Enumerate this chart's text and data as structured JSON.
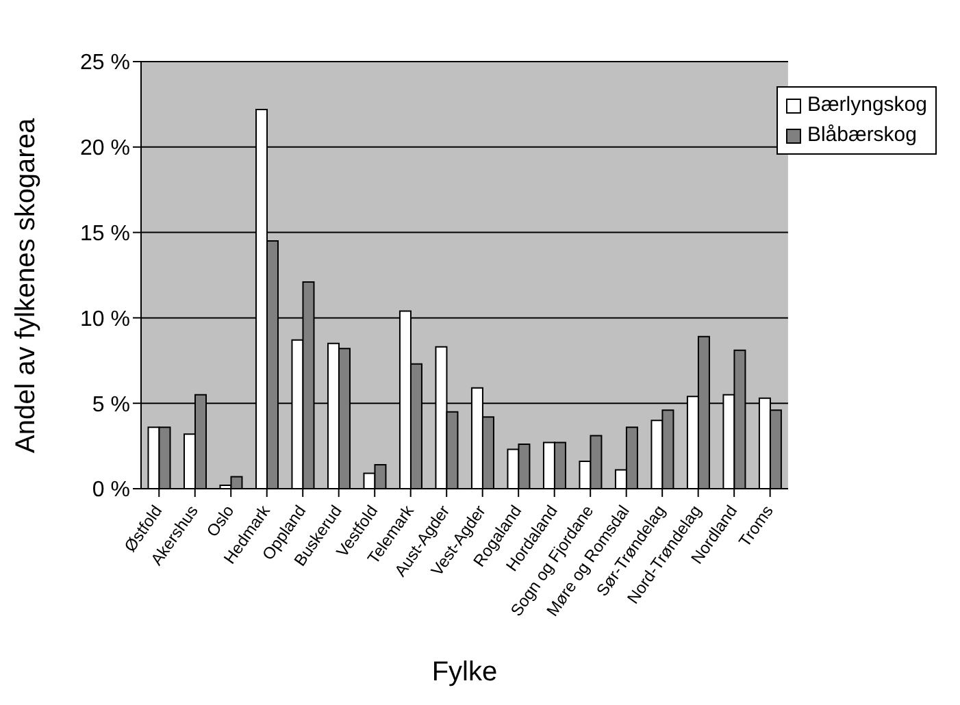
{
  "chart_data": {
    "type": "bar",
    "xlabel": "Fylke",
    "ylabel": "Andel av fylkenes skogarea",
    "categories": [
      "Østfold",
      "Akershus",
      "Oslo",
      "Hedmark",
      "Oppland",
      "Buskerud",
      "Vestfold",
      "Telemark",
      "Aust-Agder",
      "Vest-Agder",
      "Rogaland",
      "Hordaland",
      "Sogn og Fjordane",
      "Møre og Romsdal",
      "Sør-Trøndelag",
      "Nord-Trøndelag",
      "Nordland",
      "Troms"
    ],
    "series": [
      {
        "name": "Bærlyngskog",
        "color": "#ffffff",
        "values": [
          3.6,
          3.2,
          0.2,
          22.2,
          8.7,
          8.5,
          0.9,
          10.4,
          8.3,
          5.9,
          2.3,
          2.7,
          1.6,
          1.1,
          4.0,
          5.4,
          5.5,
          5.3
        ]
      },
      {
        "name": "Blåbærskog",
        "color": "#808080",
        "values": [
          3.6,
          5.5,
          0.7,
          14.5,
          12.1,
          8.2,
          1.4,
          7.3,
          4.5,
          4.2,
          2.6,
          2.7,
          3.1,
          3.6,
          4.6,
          8.9,
          8.1,
          4.6
        ]
      }
    ],
    "ylim": [
      0,
      25
    ],
    "yticks": [
      {
        "value": 0,
        "label": "0 %"
      },
      {
        "value": 5,
        "label": "5 %"
      },
      {
        "value": 10,
        "label": "10 %"
      },
      {
        "value": 15,
        "label": "15 %"
      },
      {
        "value": 20,
        "label": "20 %"
      },
      {
        "value": 25,
        "label": "25 %"
      }
    ],
    "grid": "y",
    "legend": "top right"
  }
}
